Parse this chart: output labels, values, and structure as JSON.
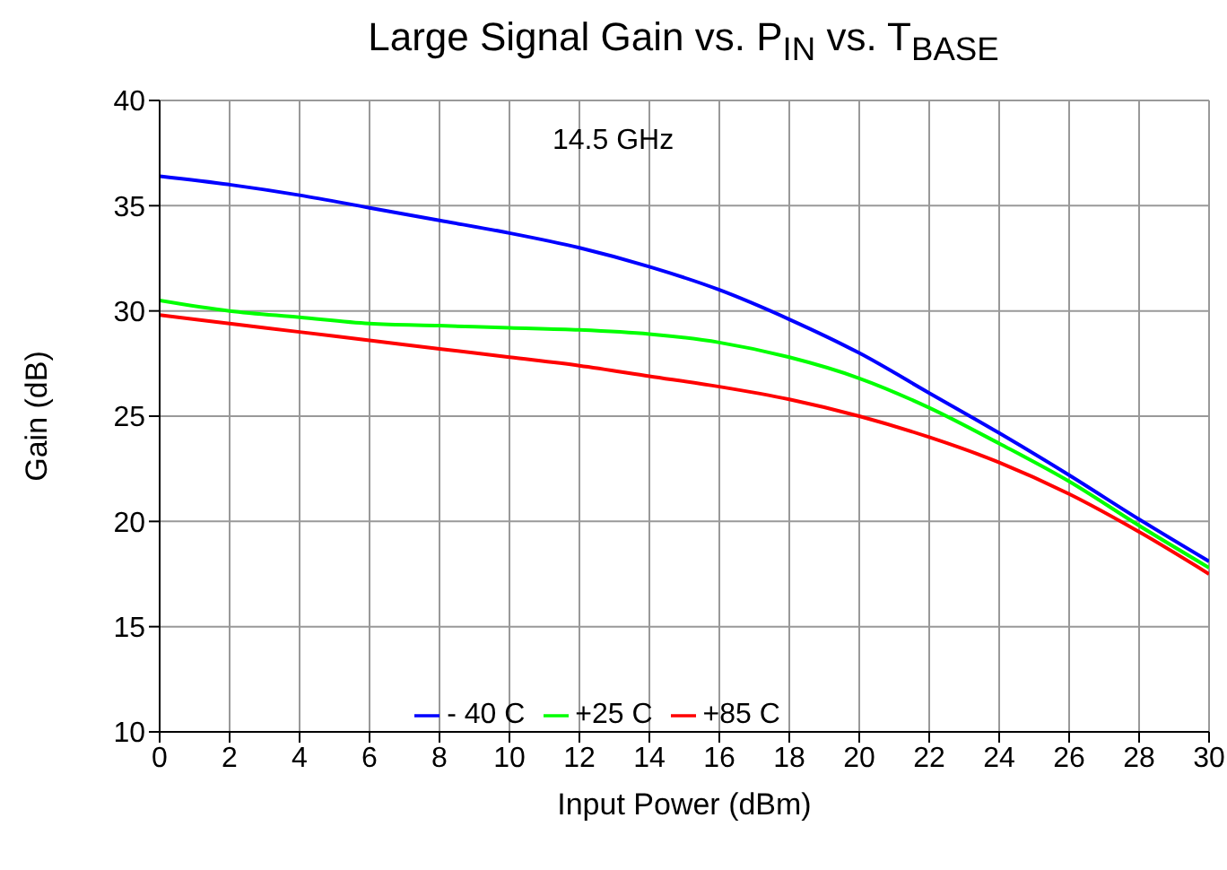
{
  "chart_data": {
    "type": "line",
    "title": "Large Signal Gain vs. P$_{IN}$ vs. T$_{BASE}$",
    "xlabel": "Input Power (dBm)",
    "ylabel": "Gain (dB)",
    "annotations": [
      "14.5 GHz"
    ],
    "x": [
      0,
      2,
      4,
      6,
      8,
      10,
      12,
      14,
      16,
      18,
      20,
      22,
      24,
      26,
      28,
      30
    ],
    "series": [
      {
        "name": "- 40 C",
        "color": "#0000ff",
        "values": [
          36.4,
          36.0,
          35.5,
          34.9,
          34.3,
          33.7,
          33.0,
          32.1,
          31.0,
          29.6,
          28.0,
          26.1,
          24.2,
          22.2,
          20.1,
          18.1
        ]
      },
      {
        "name": "+25 C",
        "color": "#00ff00",
        "values": [
          30.5,
          30.0,
          29.7,
          29.4,
          29.3,
          29.2,
          29.1,
          28.9,
          28.5,
          27.8,
          26.8,
          25.4,
          23.7,
          21.9,
          19.8,
          17.8
        ]
      },
      {
        "name": "+85 C",
        "color": "#ff0000",
        "values": [
          29.8,
          29.4,
          29.0,
          28.6,
          28.2,
          27.8,
          27.4,
          26.9,
          26.4,
          25.8,
          25.0,
          24.0,
          22.8,
          21.3,
          19.5,
          17.5
        ]
      }
    ],
    "xlim": [
      0,
      30
    ],
    "xticks": [
      0,
      2,
      4,
      6,
      8,
      10,
      12,
      14,
      16,
      18,
      20,
      22,
      24,
      26,
      28,
      30
    ],
    "ylim": [
      10,
      40
    ],
    "yticks": [
      10,
      15,
      20,
      25,
      30,
      35,
      40
    ],
    "grid": true,
    "legend": "bottom",
    "marker": "none",
    "line_style": "solid"
  }
}
